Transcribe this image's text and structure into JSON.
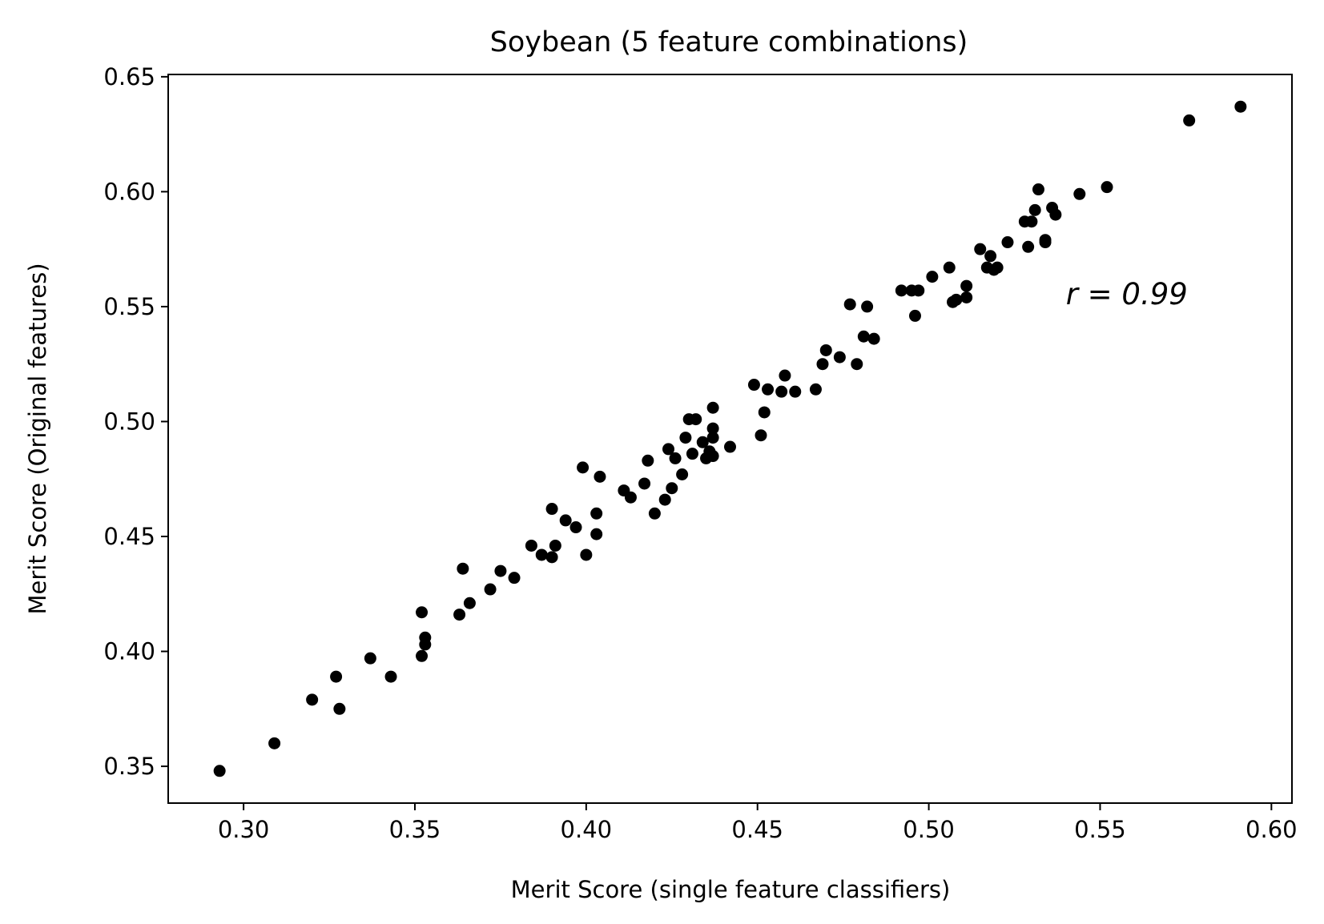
{
  "chart_data": {
    "type": "scatter",
    "title": "Soybean (5 feature combinations)",
    "xlabel": "Merit Score (single feature classifiers)",
    "ylabel": "Merit Score (Original features)",
    "xlim": [
      0.278,
      0.606
    ],
    "ylim": [
      0.334,
      0.651
    ],
    "xticks": [
      "0.30",
      "0.35",
      "0.40",
      "0.45",
      "0.50",
      "0.55",
      "0.60"
    ],
    "yticks": [
      "0.35",
      "0.40",
      "0.45",
      "0.50",
      "0.55",
      "0.60",
      "0.65"
    ],
    "grid": false,
    "legend": "none",
    "marker_color": "#000000",
    "annotation": {
      "text": "r = 0.99",
      "x": 0.54,
      "y": 0.551
    },
    "points": [
      [
        0.293,
        0.348
      ],
      [
        0.309,
        0.36
      ],
      [
        0.32,
        0.379
      ],
      [
        0.327,
        0.389
      ],
      [
        0.328,
        0.375
      ],
      [
        0.337,
        0.397
      ],
      [
        0.343,
        0.389
      ],
      [
        0.352,
        0.398
      ],
      [
        0.352,
        0.417
      ],
      [
        0.353,
        0.403
      ],
      [
        0.353,
        0.406
      ],
      [
        0.363,
        0.416
      ],
      [
        0.364,
        0.436
      ],
      [
        0.366,
        0.421
      ],
      [
        0.372,
        0.427
      ],
      [
        0.375,
        0.435
      ],
      [
        0.379,
        0.432
      ],
      [
        0.384,
        0.446
      ],
      [
        0.387,
        0.442
      ],
      [
        0.39,
        0.441
      ],
      [
        0.39,
        0.462
      ],
      [
        0.391,
        0.446
      ],
      [
        0.394,
        0.457
      ],
      [
        0.397,
        0.454
      ],
      [
        0.399,
        0.48
      ],
      [
        0.4,
        0.442
      ],
      [
        0.403,
        0.46
      ],
      [
        0.403,
        0.451
      ],
      [
        0.404,
        0.476
      ],
      [
        0.411,
        0.47
      ],
      [
        0.413,
        0.467
      ],
      [
        0.417,
        0.473
      ],
      [
        0.418,
        0.483
      ],
      [
        0.42,
        0.46
      ],
      [
        0.423,
        0.466
      ],
      [
        0.424,
        0.488
      ],
      [
        0.425,
        0.471
      ],
      [
        0.426,
        0.484
      ],
      [
        0.428,
        0.477
      ],
      [
        0.429,
        0.493
      ],
      [
        0.43,
        0.501
      ],
      [
        0.431,
        0.486
      ],
      [
        0.432,
        0.501
      ],
      [
        0.434,
        0.491
      ],
      [
        0.435,
        0.484
      ],
      [
        0.436,
        0.487
      ],
      [
        0.437,
        0.485
      ],
      [
        0.437,
        0.506
      ],
      [
        0.437,
        0.497
      ],
      [
        0.437,
        0.493
      ],
      [
        0.442,
        0.489
      ],
      [
        0.449,
        0.516
      ],
      [
        0.451,
        0.494
      ],
      [
        0.452,
        0.504
      ],
      [
        0.453,
        0.514
      ],
      [
        0.457,
        0.513
      ],
      [
        0.458,
        0.52
      ],
      [
        0.461,
        0.513
      ],
      [
        0.467,
        0.514
      ],
      [
        0.469,
        0.525
      ],
      [
        0.47,
        0.531
      ],
      [
        0.474,
        0.528
      ],
      [
        0.477,
        0.551
      ],
      [
        0.479,
        0.525
      ],
      [
        0.481,
        0.537
      ],
      [
        0.482,
        0.55
      ],
      [
        0.484,
        0.536
      ],
      [
        0.492,
        0.557
      ],
      [
        0.495,
        0.557
      ],
      [
        0.496,
        0.546
      ],
      [
        0.497,
        0.557
      ],
      [
        0.501,
        0.563
      ],
      [
        0.506,
        0.567
      ],
      [
        0.507,
        0.552
      ],
      [
        0.508,
        0.553
      ],
      [
        0.511,
        0.554
      ],
      [
        0.511,
        0.559
      ],
      [
        0.515,
        0.575
      ],
      [
        0.517,
        0.567
      ],
      [
        0.518,
        0.572
      ],
      [
        0.519,
        0.566
      ],
      [
        0.52,
        0.567
      ],
      [
        0.523,
        0.578
      ],
      [
        0.528,
        0.587
      ],
      [
        0.529,
        0.576
      ],
      [
        0.53,
        0.587
      ],
      [
        0.531,
        0.592
      ],
      [
        0.532,
        0.601
      ],
      [
        0.534,
        0.578
      ],
      [
        0.534,
        0.579
      ],
      [
        0.536,
        0.593
      ],
      [
        0.537,
        0.59
      ],
      [
        0.544,
        0.599
      ],
      [
        0.552,
        0.602
      ],
      [
        0.576,
        0.631
      ],
      [
        0.591,
        0.637
      ]
    ]
  }
}
